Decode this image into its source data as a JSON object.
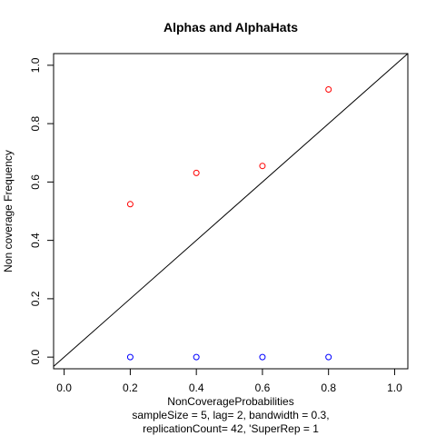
{
  "chart_data": {
    "type": "scatter",
    "title": "Alphas and AlphaHats",
    "xlabel": "NonCoverageProbabilities",
    "subtitle_lines": [
      "sampleSize = 5, lag= 2, bandwidth = 0.3,",
      "replicationCount= 42, 'SuperRep = 1"
    ],
    "ylabel": "Non coverage Frequency",
    "xlim": [
      -0.032,
      1.04
    ],
    "ylim": [
      -0.04,
      1.04
    ],
    "x_ticks": [
      0.0,
      0.2,
      0.4,
      0.6,
      0.8,
      1.0
    ],
    "x_tick_labels": [
      "0.0",
      "0.2",
      "0.4",
      "0.6",
      "0.8",
      "1.0"
    ],
    "y_ticks": [
      0.0,
      0.2,
      0.4,
      0.6,
      0.8,
      1.0
    ],
    "y_tick_labels": [
      "0.0",
      "0.2",
      "0.4",
      "0.6",
      "0.8",
      "1.0"
    ],
    "grid": false,
    "reference_line": {
      "intercept": 0,
      "slope": 1,
      "color": "#000000"
    },
    "series": [
      {
        "color": "#ff0000",
        "marker": "open-circle",
        "x": [
          0.2,
          0.4,
          0.6,
          0.8
        ],
        "y": [
          0.524,
          0.631,
          0.655,
          0.917
        ]
      },
      {
        "color": "#0000ff",
        "marker": "open-circle",
        "x": [
          0.2,
          0.4,
          0.6,
          0.8
        ],
        "y": [
          0.0,
          0.0,
          0.0,
          0.0
        ]
      }
    ]
  }
}
